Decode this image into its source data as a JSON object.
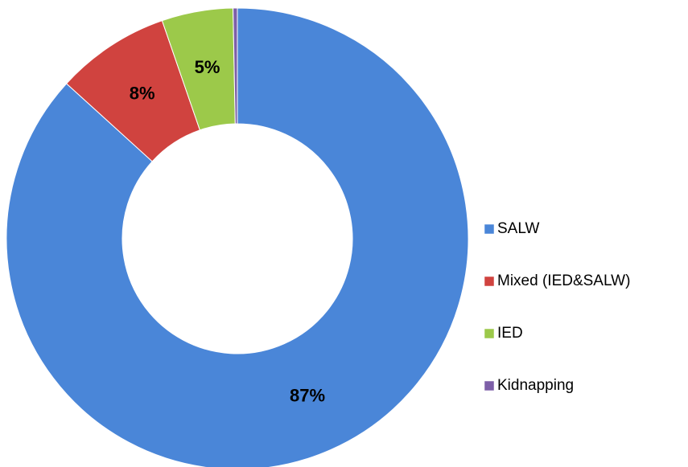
{
  "chart_data": {
    "type": "donut",
    "categories": [
      "SALW",
      "Mixed (IED&SALW)",
      "IED",
      "Kidnapping"
    ],
    "values": [
      87,
      8,
      5,
      0.3
    ],
    "value_labels": [
      "87%",
      "8%",
      "5%",
      null
    ],
    "colors": [
      "#4a86d8",
      "#d0433f",
      "#9cc94a",
      "#7d5fa8"
    ],
    "legend": "right"
  }
}
